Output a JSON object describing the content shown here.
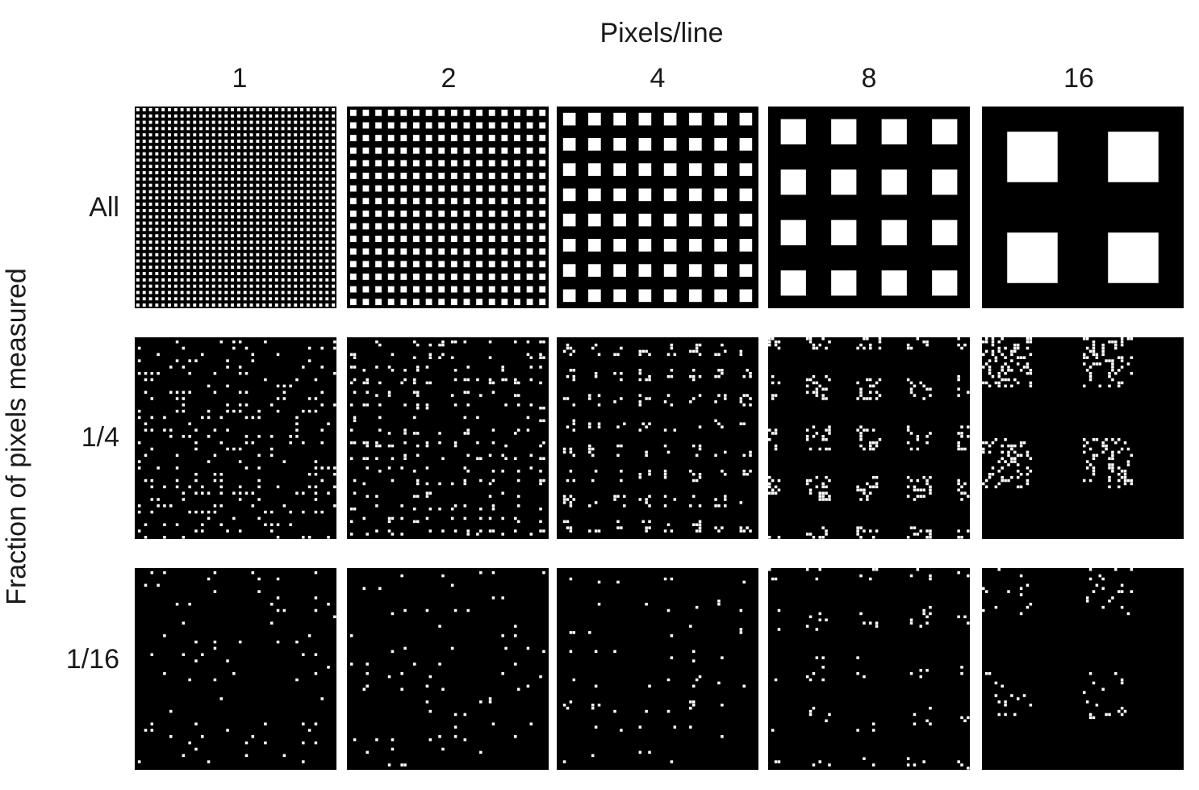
{
  "column_axis_title": "Pixels/line",
  "row_axis_title": "Fraction of pixels measured",
  "columns": [
    {
      "label": "1",
      "pixels_per_line": 1
    },
    {
      "label": "2",
      "pixels_per_line": 2
    },
    {
      "label": "4",
      "pixels_per_line": 4
    },
    {
      "label": "8",
      "pixels_per_line": 8
    },
    {
      "label": "16",
      "pixels_per_line": 16
    }
  ],
  "rows": [
    {
      "label": "All",
      "fraction": 1
    },
    {
      "label": "1/4",
      "fraction": 0.25
    },
    {
      "label": "1/16",
      "fraction": 0.0625
    }
  ],
  "colors": {
    "panel_background": "#000000",
    "pixel_on": "#ffffff"
  }
}
